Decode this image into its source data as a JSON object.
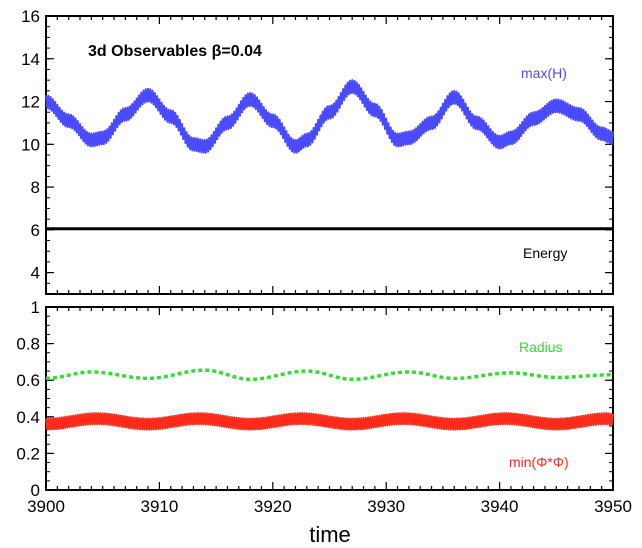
{
  "chart_data": [
    {
      "type": "line",
      "title": "3d Observables β=0.04",
      "xlabel": "",
      "ylabel": "",
      "xlim": [
        3900,
        3950
      ],
      "ylim": [
        3,
        16
      ],
      "yticks": [
        "4",
        "6",
        "8",
        "10",
        "12",
        "14",
        "16"
      ],
      "grid": false,
      "series": [
        {
          "name": "max(H)",
          "color": "#4a4aff",
          "x": [
            3900,
            3902,
            3904,
            3905,
            3907,
            3909,
            3911,
            3913,
            3914,
            3916,
            3918,
            3920,
            3922,
            3923,
            3925,
            3927,
            3929,
            3931,
            3932,
            3934,
            3936,
            3938,
            3940,
            3941,
            3943,
            3945,
            3947,
            3949,
            3950
          ],
          "values": [
            12.0,
            11.1,
            10.2,
            10.3,
            11.4,
            12.3,
            11.3,
            10.0,
            9.9,
            11.0,
            12.1,
            11.1,
            9.9,
            10.2,
            11.5,
            12.7,
            11.6,
            10.2,
            10.3,
            11.0,
            12.2,
            11.0,
            10.1,
            10.3,
            11.2,
            11.8,
            11.4,
            10.5,
            10.3
          ],
          "oscillation_amplitude": 0.3
        },
        {
          "name": "Energy",
          "color": "#000000",
          "x": [
            3900,
            3950
          ],
          "values": [
            6.05,
            6.05
          ]
        }
      ]
    },
    {
      "type": "line",
      "title": "",
      "xlabel": "time",
      "ylabel": "",
      "xlim": [
        3900,
        3950
      ],
      "ylim": [
        0,
        1
      ],
      "xticks": [
        "3900",
        "3910",
        "3920",
        "3930",
        "3940",
        "3950"
      ],
      "yticks": [
        "0",
        "0.2",
        "0.4",
        "0.6",
        "0.8",
        "1"
      ],
      "grid": false,
      "series": [
        {
          "name": "Radius",
          "color": "#33dd33",
          "style": "dashed",
          "x": [
            3900,
            3904,
            3909,
            3914,
            3918,
            3923,
            3927,
            3932,
            3936,
            3941,
            3945,
            3950
          ],
          "values": [
            0.61,
            0.645,
            0.61,
            0.655,
            0.605,
            0.65,
            0.605,
            0.645,
            0.61,
            0.64,
            0.615,
            0.63
          ]
        },
        {
          "name": "min(Φ*Φ)",
          "color": "#ff2a1a",
          "x": [
            3900,
            3904.5,
            3909,
            3913.5,
            3918,
            3922.5,
            3927,
            3931.5,
            3936,
            3940.5,
            3945,
            3949.5,
            3950
          ],
          "values": [
            0.36,
            0.39,
            0.36,
            0.39,
            0.36,
            0.39,
            0.36,
            0.39,
            0.36,
            0.39,
            0.36,
            0.39,
            0.385
          ],
          "oscillation_amplitude": 0.03
        }
      ]
    }
  ]
}
